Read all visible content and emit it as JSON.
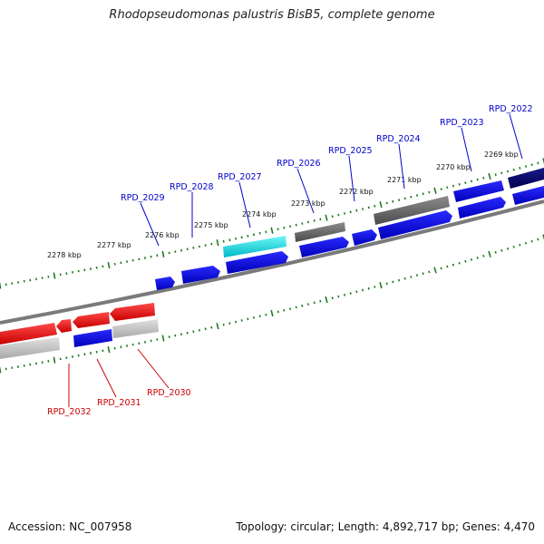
{
  "title": "Rhodopseudomonas palustris BisB5, complete genome",
  "accession": "Accession: NC_007958",
  "summary": "Topology: circular; Length: 4,892,717 bp; Genes: 4,470",
  "colors": {
    "forward_gene": "#0000ee",
    "reverse_gene": "#ee0000",
    "backbone": "#808080",
    "ticks": "#1f7a1f",
    "forward_label": "#0000cc",
    "reverse_label": "#cc0000"
  },
  "kbp_labels": [
    "2278 kbp",
    "2277 kbp",
    "2276 kbp",
    "2275 kbp",
    "2274 kbp",
    "2273 kbp",
    "2272 kbp",
    "2271 kbp",
    "2270 kbp",
    "2269 kbp"
  ],
  "top_gene_labels": [
    "RPD_2029",
    "RPD_2028",
    "RPD_2027",
    "RPD_2026",
    "RPD_2025",
    "RPD_2024",
    "RPD_2023",
    "RPD_2022"
  ],
  "bottom_gene_labels": [
    "RPD_2032",
    "RPD_2031",
    "RPD_2030"
  ]
}
